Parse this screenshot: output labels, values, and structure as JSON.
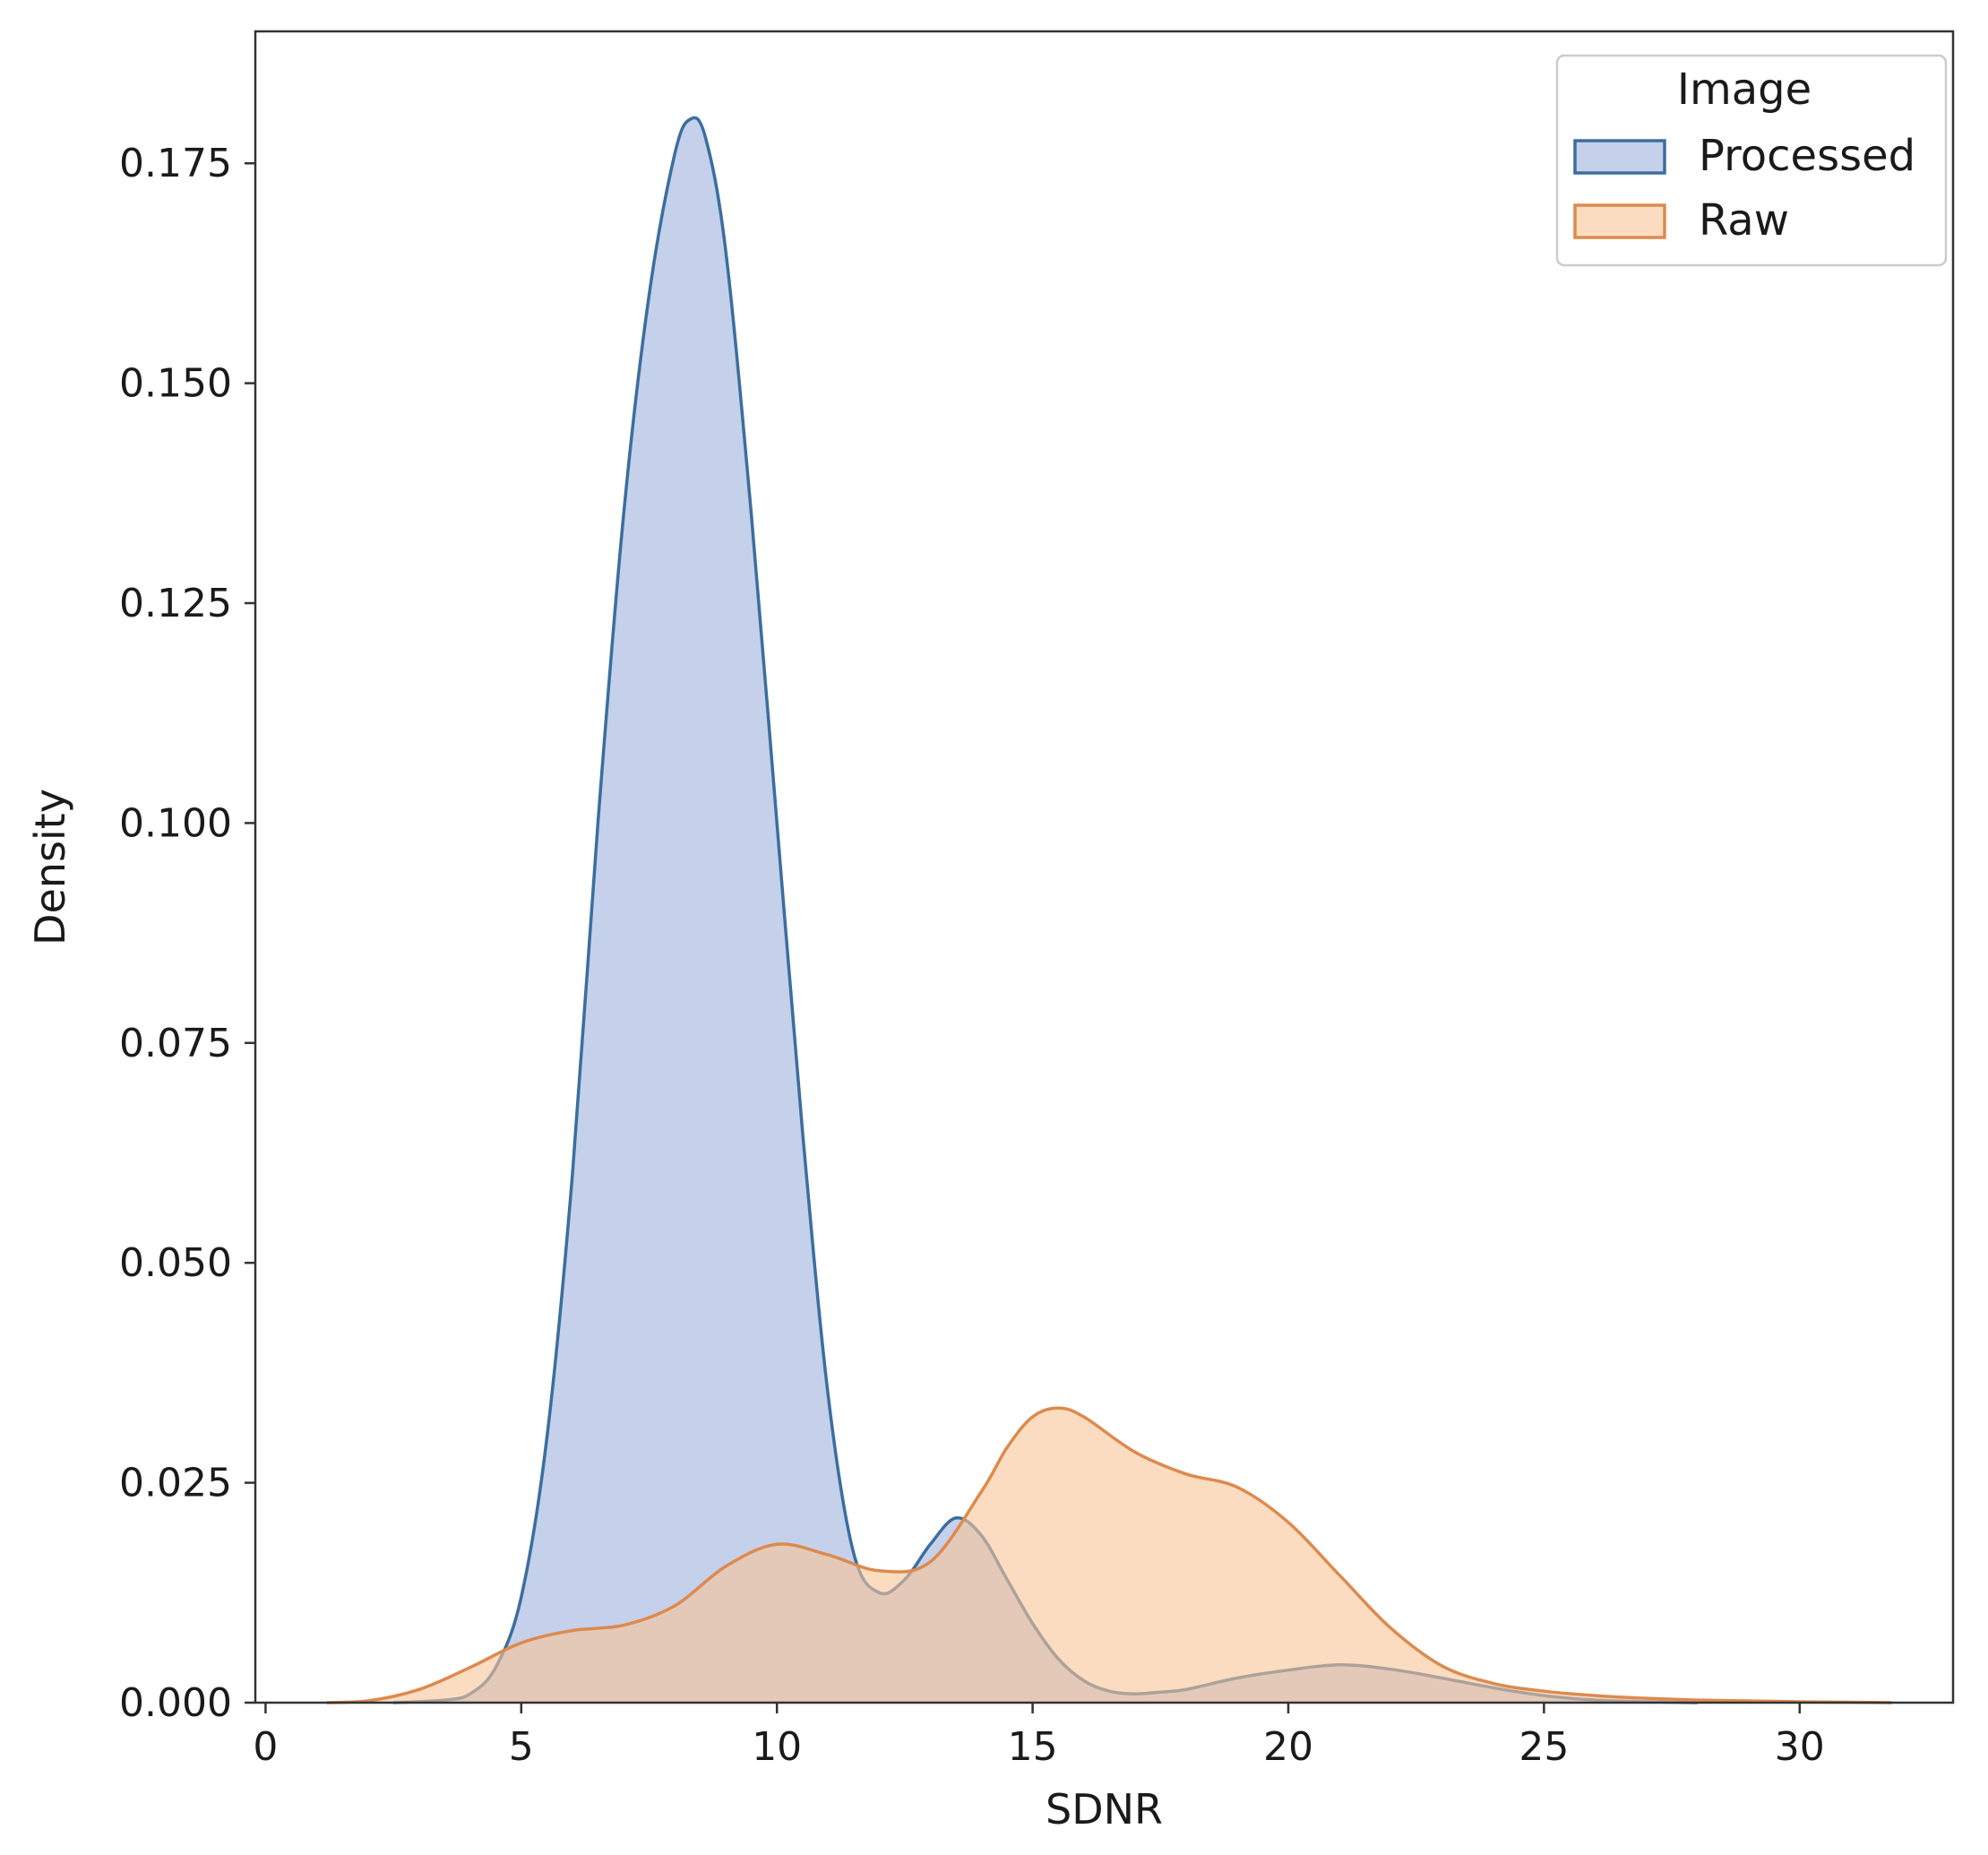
{
  "chart_data": {
    "type": "area",
    "kind": "kde",
    "title": "",
    "xlabel": "SDNR",
    "ylabel": "Density",
    "xlim": [
      -0.2,
      33.0
    ],
    "ylim": [
      0,
      0.19
    ],
    "xticks": [
      0,
      5,
      10,
      15,
      20,
      25,
      30
    ],
    "yticks": [
      0.0,
      0.025,
      0.05,
      0.075,
      0.1,
      0.125,
      0.15,
      0.175
    ],
    "xtick_labels": [
      "0",
      "5",
      "10",
      "15",
      "20",
      "25",
      "30"
    ],
    "ytick_labels": [
      "0.000",
      "0.025",
      "0.050",
      "0.075",
      "0.100",
      "0.125",
      "0.150",
      "0.175"
    ],
    "grid": false,
    "legend": {
      "title": "Image",
      "position": "top-right",
      "entries": [
        "Processed",
        "Raw"
      ]
    },
    "series": [
      {
        "name": "Processed",
        "color": "#3b6e9e",
        "fill": "#9fb1dc",
        "points": [
          [
            2.5,
            0.0
          ],
          [
            3.5,
            0.0003
          ],
          [
            4.0,
            0.001
          ],
          [
            4.5,
            0.004
          ],
          [
            5.0,
            0.012
          ],
          [
            5.5,
            0.03
          ],
          [
            6.0,
            0.06
          ],
          [
            6.5,
            0.1
          ],
          [
            7.0,
            0.135
          ],
          [
            7.5,
            0.16
          ],
          [
            8.0,
            0.176
          ],
          [
            8.3,
            0.18
          ],
          [
            8.6,
            0.178
          ],
          [
            9.0,
            0.165
          ],
          [
            9.5,
            0.135
          ],
          [
            10.0,
            0.1
          ],
          [
            10.5,
            0.065
          ],
          [
            11.0,
            0.035
          ],
          [
            11.5,
            0.017
          ],
          [
            12.0,
            0.0125
          ],
          [
            12.5,
            0.014
          ],
          [
            13.0,
            0.018
          ],
          [
            13.5,
            0.021
          ],
          [
            14.0,
            0.019
          ],
          [
            14.5,
            0.014
          ],
          [
            15.0,
            0.009
          ],
          [
            15.5,
            0.005
          ],
          [
            16.0,
            0.0025
          ],
          [
            16.5,
            0.0013
          ],
          [
            17.0,
            0.001
          ],
          [
            17.5,
            0.0012
          ],
          [
            18.0,
            0.0015
          ],
          [
            19.0,
            0.0028
          ],
          [
            20.0,
            0.0037
          ],
          [
            21.0,
            0.0043
          ],
          [
            22.0,
            0.0038
          ],
          [
            23.0,
            0.0028
          ],
          [
            24.0,
            0.0017
          ],
          [
            25.0,
            0.0008
          ],
          [
            26.0,
            0.0003
          ],
          [
            27.0,
            0.0001
          ],
          [
            28.0,
            0.0
          ]
        ]
      },
      {
        "name": "Raw",
        "color": "#dd8a4e",
        "fill": "#f8c497",
        "points": [
          [
            1.2,
            0.0
          ],
          [
            2.0,
            0.0002
          ],
          [
            3.0,
            0.0015
          ],
          [
            4.0,
            0.004
          ],
          [
            5.0,
            0.0068
          ],
          [
            6.0,
            0.0082
          ],
          [
            7.0,
            0.0088
          ],
          [
            8.0,
            0.011
          ],
          [
            9.0,
            0.0155
          ],
          [
            10.0,
            0.018
          ],
          [
            11.0,
            0.0168
          ],
          [
            12.0,
            0.015
          ],
          [
            13.0,
            0.016
          ],
          [
            14.0,
            0.024
          ],
          [
            14.5,
            0.029
          ],
          [
            15.0,
            0.0325
          ],
          [
            15.5,
            0.0335
          ],
          [
            16.0,
            0.0325
          ],
          [
            17.0,
            0.0285
          ],
          [
            18.0,
            0.026
          ],
          [
            19.0,
            0.0245
          ],
          [
            20.0,
            0.0205
          ],
          [
            21.0,
            0.0145
          ],
          [
            22.0,
            0.0085
          ],
          [
            23.0,
            0.0042
          ],
          [
            24.0,
            0.0022
          ],
          [
            25.0,
            0.0013
          ],
          [
            26.0,
            0.0008
          ],
          [
            27.0,
            0.0005
          ],
          [
            28.0,
            0.0003
          ],
          [
            29.0,
            0.0002
          ],
          [
            30.0,
            0.0001
          ],
          [
            31.0,
            5e-05
          ],
          [
            31.8,
            0.0
          ]
        ]
      }
    ]
  }
}
